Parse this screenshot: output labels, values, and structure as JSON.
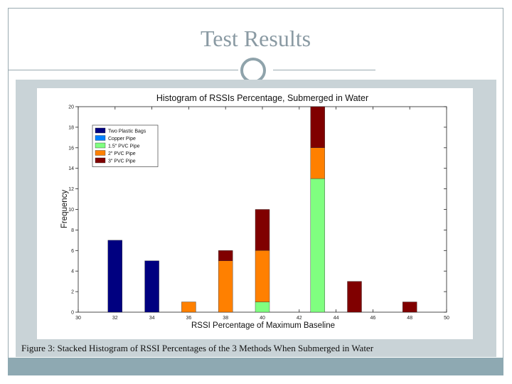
{
  "slide": {
    "title": "Test Results",
    "caption": "Figure 3: Stacked Histogram of RSSI Percentages of the 3 Methods When Submerged in Water",
    "colors": {
      "title": "#8a9aa3",
      "frame": "#9aaab0",
      "panel": "#c9d3d7",
      "footer": "#8ea9b2"
    }
  },
  "chart_data": {
    "type": "bar",
    "stacked": true,
    "title": "Histogram of RSSIs Percentage, Submerged in Water",
    "xlabel": "RSSI Percentage of Maximum Baseline",
    "ylabel": "Frequency",
    "xlim": [
      30,
      50
    ],
    "ylim": [
      0,
      20
    ],
    "xticks": [
      30,
      32,
      34,
      36,
      38,
      40,
      42,
      44,
      46,
      48,
      50
    ],
    "yticks": [
      0,
      2,
      4,
      6,
      8,
      10,
      12,
      14,
      16,
      18,
      20
    ],
    "grid": false,
    "legend_position": "top-left",
    "x": [
      32,
      34,
      36,
      38,
      40,
      43,
      45,
      48
    ],
    "series": [
      {
        "name": "Two Plastic Bags",
        "color": "#000080",
        "values": [
          7,
          5,
          0,
          0,
          0,
          0,
          0,
          0
        ]
      },
      {
        "name": "Copper Pipe",
        "color": "#0080ff",
        "values": [
          0,
          0,
          0,
          0,
          0,
          0,
          0,
          0
        ]
      },
      {
        "name": "1.5\" PVC Pipe",
        "color": "#80ff80",
        "values": [
          0,
          0,
          0,
          0,
          1,
          13,
          0,
          0
        ]
      },
      {
        "name": "2\" PVC Pipe",
        "color": "#ff8000",
        "values": [
          0,
          0,
          1,
          5,
          5,
          3,
          0,
          0
        ]
      },
      {
        "name": "3\" PVC Pipe",
        "color": "#800000",
        "values": [
          0,
          0,
          0,
          1,
          4,
          4,
          3,
          1
        ]
      }
    ]
  }
}
